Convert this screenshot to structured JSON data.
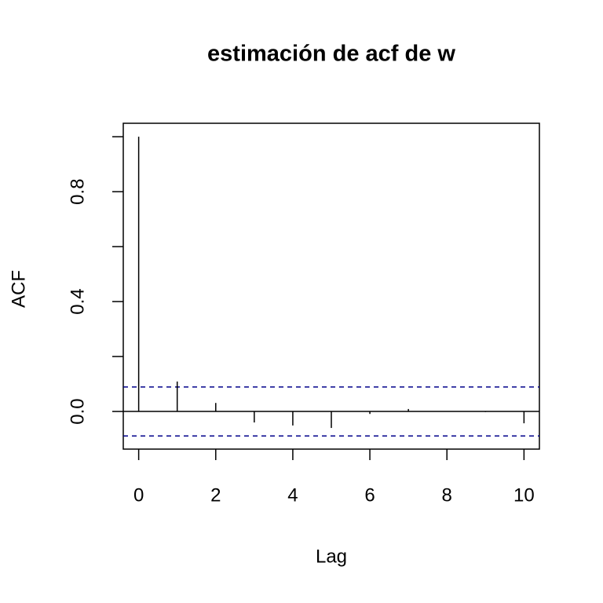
{
  "chart_data": {
    "type": "acf",
    "title": "estimación de acf de w",
    "x_label": "Lag",
    "y_label": "ACF",
    "x": [
      0,
      1,
      2,
      3,
      4,
      5,
      6,
      7,
      8,
      9,
      10
    ],
    "values": [
      1,
      0.109,
      0.031,
      -0.04,
      -0.051,
      -0.06,
      -0.009,
      0.009,
      0.001,
      -0.002,
      -0.043
    ],
    "color": "#000000",
    "conf_limits": [
      0.089,
      -0.089
    ],
    "conf_color": "#00008b",
    "xlim": [
      -0.4,
      10.4
    ],
    "xticks": [
      0,
      2,
      4,
      6,
      8,
      10
    ],
    "ylim": [
      -0.137,
      1.049
    ],
    "yticks": [
      {
        "value": 0,
        "label": "0.0"
      },
      {
        "value": 0.2,
        "label": null
      },
      {
        "value": 0.4,
        "label": "0.4"
      },
      {
        "value": 0.6,
        "label": null
      },
      {
        "value": 0.8,
        "label": "0.8"
      },
      {
        "value": 1,
        "label": null
      }
    ]
  }
}
